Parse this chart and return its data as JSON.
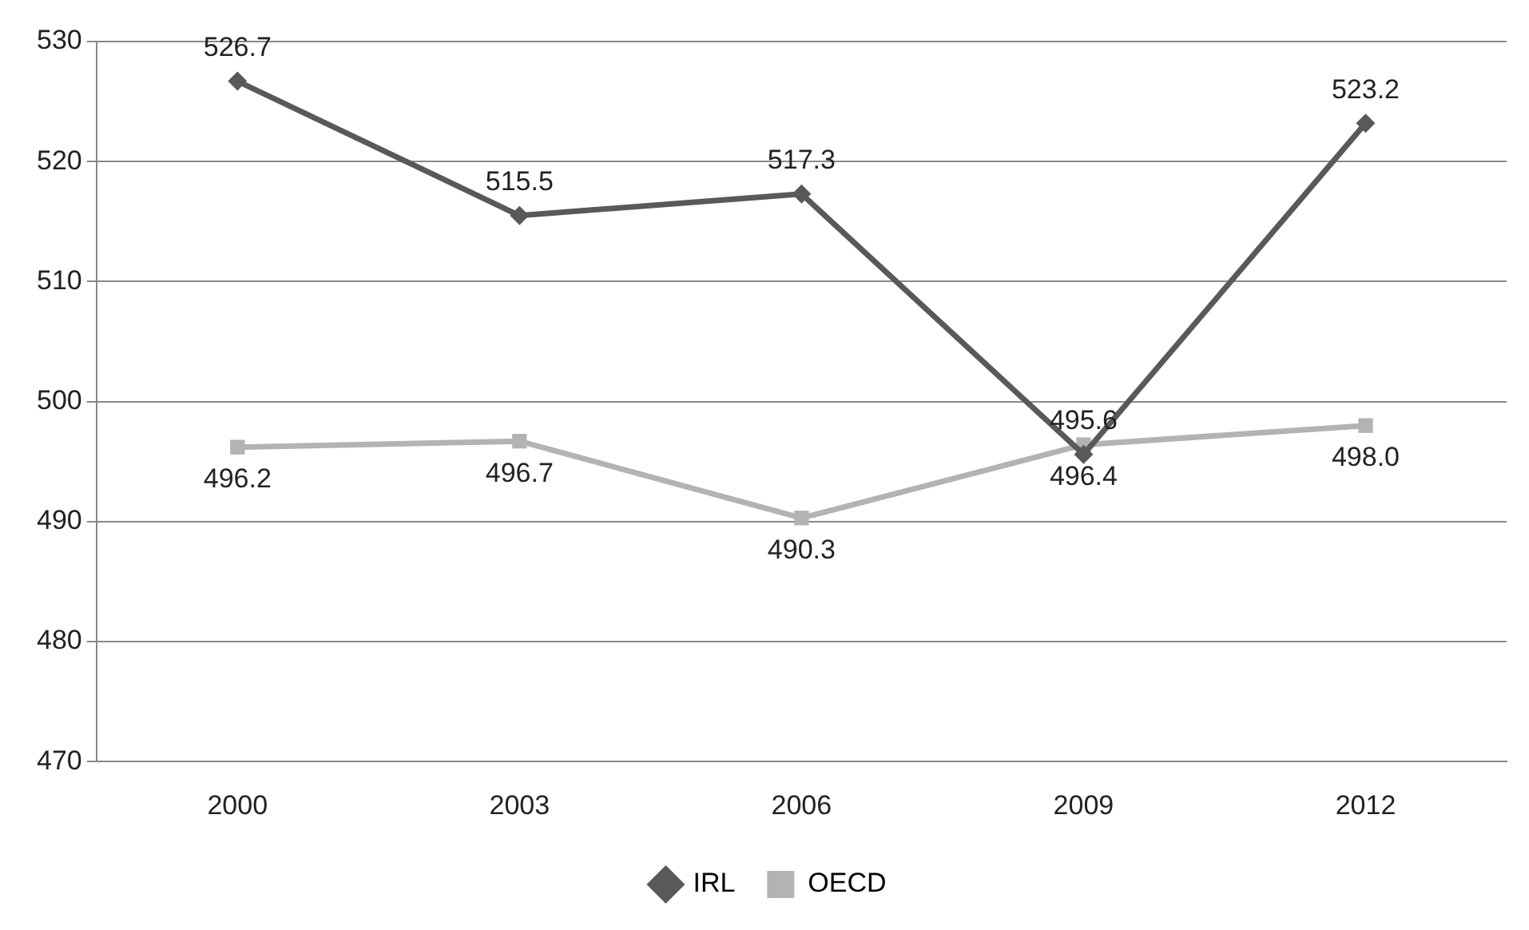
{
  "chart_data": {
    "type": "line",
    "categories": [
      "2000",
      "2003",
      "2006",
      "2009",
      "2012"
    ],
    "series": [
      {
        "name": "IRL",
        "color": "#595959",
        "marker": "diamond",
        "values": [
          526.7,
          515.5,
          517.3,
          495.6,
          523.2
        ],
        "value_labels": [
          "526.7",
          "515.5",
          "517.3",
          "495.6",
          "523.2"
        ]
      },
      {
        "name": "OECD",
        "color": "#b3b3b3",
        "marker": "square",
        "values": [
          496.2,
          496.7,
          490.3,
          496.4,
          498.0
        ],
        "value_labels": [
          "496.2",
          "496.7",
          "490.3",
          "496.4",
          "498.0"
        ]
      }
    ],
    "ylim": [
      470,
      530
    ],
    "yticks": [
      470,
      480,
      490,
      500,
      510,
      520,
      530
    ],
    "grid": "y",
    "legend": "bottom",
    "line_style": "solid"
  }
}
